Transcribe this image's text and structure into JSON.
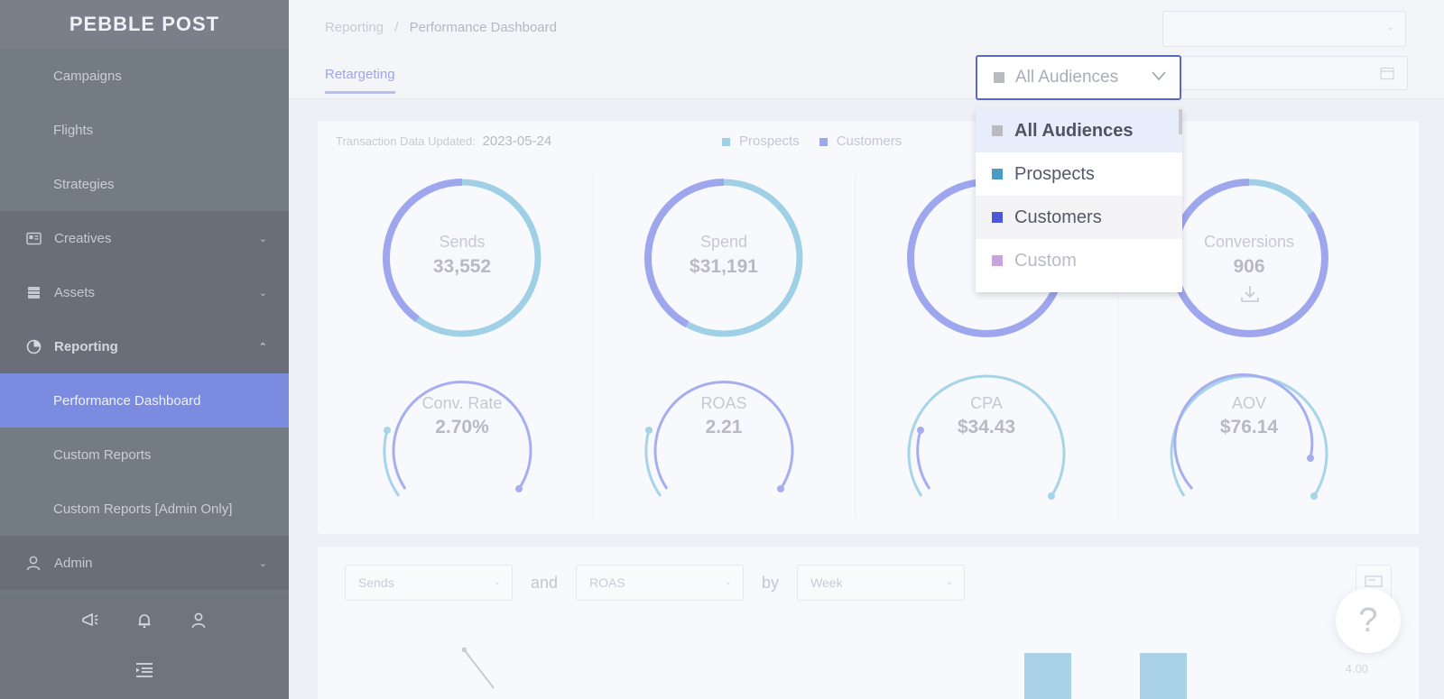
{
  "brand": {
    "logo_text": "PEBBLE POST"
  },
  "sidebar": {
    "sub_items_top": [
      {
        "label": "Campaigns"
      },
      {
        "label": "Flights"
      },
      {
        "label": "Strategies"
      }
    ],
    "groups": {
      "creatives": {
        "label": "Creatives",
        "icon": "image-icon"
      },
      "assets": {
        "label": "Assets",
        "icon": "grid-icon"
      },
      "reporting": {
        "label": "Reporting",
        "icon": "pie-chart-icon"
      },
      "admin": {
        "label": "Admin",
        "icon": "user-icon"
      }
    },
    "reporting_items": [
      {
        "label": "Performance Dashboard",
        "active": true
      },
      {
        "label": "Custom Reports"
      },
      {
        "label": "Custom Reports [Admin Only]"
      }
    ],
    "bottom_icons": [
      "megaphone-icon",
      "bell-icon",
      "user-icon"
    ],
    "collapse_icon": "collapse-menu-icon"
  },
  "header": {
    "breadcrumb": {
      "parent": "Reporting",
      "separator": "/",
      "current": "Performance Dashboard"
    },
    "tab": "Retargeting"
  },
  "audience_dropdown": {
    "selected": "All Audiences",
    "options": [
      {
        "label": "All Audiences",
        "color": "#b9bbc1",
        "state": "selected"
      },
      {
        "label": "Prospects",
        "color": "#4a9cc4",
        "state": "normal"
      },
      {
        "label": "Customers",
        "color": "#4d58d8",
        "state": "hover"
      },
      {
        "label": "Custom",
        "color": "#c9a3dd",
        "state": "disabled"
      }
    ]
  },
  "summary": {
    "updated_label": "Transaction Data Updated:",
    "updated_value": "2023-05-24",
    "legend": [
      {
        "label": "Prospects",
        "color": "#9fd0e6"
      },
      {
        "label": "Customers",
        "color": "#9ea7ee"
      }
    ],
    "metrics_top": [
      {
        "label": "Sends",
        "value": "33,552",
        "prospect_fraction": 0.6
      },
      {
        "label": "Spend",
        "value": "$31,191",
        "prospect_fraction": 0.58
      },
      {
        "label": "",
        "value": "",
        "prospect_fraction": 0.1
      },
      {
        "label": "Conversions",
        "value": "906",
        "prospect_fraction": 0.15
      }
    ],
    "metrics_bottom": [
      {
        "label": "Conv. Rate",
        "value": "2.70%"
      },
      {
        "label": "ROAS",
        "value": "2.21"
      },
      {
        "label": "CPA",
        "value": "$34.43"
      },
      {
        "label": "AOV",
        "value": "$76.14"
      }
    ],
    "download_icon": "download-icon"
  },
  "chart_controls": {
    "metric1": "Sends",
    "joiner1": "and",
    "metric2": "ROAS",
    "joiner2": "by",
    "period": "Week",
    "axis_right_top": "4.00",
    "chart_icon": "chart-toggle-icon"
  },
  "help": {
    "label": "?"
  }
}
